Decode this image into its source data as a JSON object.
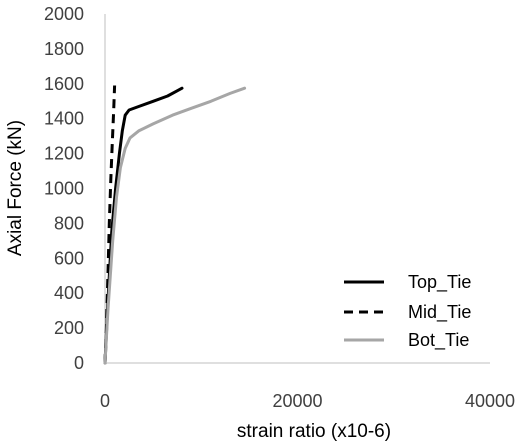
{
  "chart_data": {
    "type": "line",
    "title": "",
    "xlabel": "strain ratio (x10-6)",
    "ylabel": "Axial Force (kN)",
    "xlim": [
      0,
      40000
    ],
    "ylim": [
      0,
      2000
    ],
    "xticks": [
      "0",
      "20000",
      "40000"
    ],
    "yticks": [
      "0",
      "200",
      "400",
      "600",
      "800",
      "1000",
      "1200",
      "1400",
      "1600",
      "1800",
      "2000"
    ],
    "grid": false,
    "legend_position": "bottom-right",
    "series": [
      {
        "name": "Top_Tie",
        "color": "#000000",
        "dash": "solid",
        "x": [
          0,
          300,
          700,
          1100,
          1500,
          1800,
          2100,
          2500,
          3500,
          5000,
          6500,
          7500,
          8000
        ],
        "y": [
          0,
          350,
          750,
          1000,
          1200,
          1330,
          1420,
          1450,
          1470,
          1500,
          1530,
          1560,
          1575
        ]
      },
      {
        "name": "Mid_Tie",
        "color": "#000000",
        "dash": "dashed",
        "x": [
          0,
          150,
          300,
          450,
          600,
          750,
          900,
          1000
        ],
        "y": [
          0,
          200,
          500,
          800,
          1050,
          1250,
          1450,
          1590
        ]
      },
      {
        "name": "Bot_Tie",
        "color": "#a6a6a6",
        "dash": "solid",
        "x": [
          0,
          300,
          800,
          1200,
          1600,
          2100,
          2600,
          3500,
          5000,
          7000,
          9000,
          11000,
          13000,
          14500
        ],
        "y": [
          0,
          300,
          700,
          950,
          1120,
          1230,
          1290,
          1330,
          1370,
          1420,
          1460,
          1500,
          1545,
          1575
        ]
      }
    ]
  }
}
